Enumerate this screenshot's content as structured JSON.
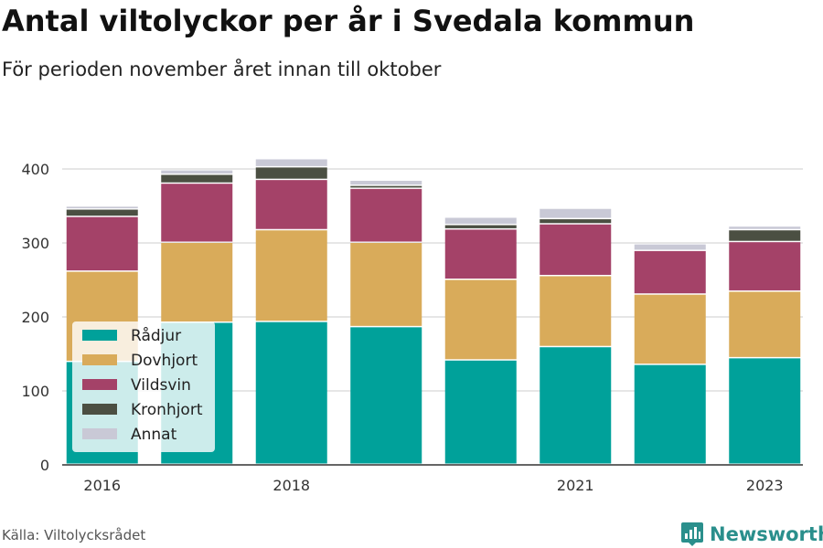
{
  "header": {
    "title": "Antal viltolyckor per år i Svedala kommun",
    "subtitle": "För perioden november året innan till oktober"
  },
  "footer": {
    "source": "Källa: Viltolycksrådet",
    "brand": "Newsworthy",
    "brand_icon": "bar-chart-logo-icon"
  },
  "colors": {
    "Rådjur": "#00a19a",
    "Dovhjort": "#d9ab5a",
    "Vildsvin": "#a44268",
    "Kronhjort": "#4b4f42",
    "Annat": "#c9c9d6",
    "brand": "#2a8f8c",
    "axis": "#333333",
    "grid": "#dddddd"
  },
  "chart_data": {
    "type": "bar",
    "stacked": true,
    "categories": [
      "2016",
      "2017",
      "2018",
      "2019",
      "2020",
      "2021",
      "2022",
      "2023"
    ],
    "x_tick_labels": [
      "2016",
      "",
      "2018",
      "",
      "",
      "2021",
      "",
      "2023"
    ],
    "ylim": [
      0,
      450
    ],
    "yticks": [
      0,
      100,
      200,
      300,
      400
    ],
    "grid": true,
    "legend_position": "bottom-left",
    "series": [
      {
        "name": "Rådjur",
        "values": [
          139,
          192,
          193,
          186,
          141,
          159,
          135,
          144
        ]
      },
      {
        "name": "Dovhjort",
        "values": [
          122,
          108,
          124,
          114,
          109,
          96,
          95,
          90
        ]
      },
      {
        "name": "Vildsvin",
        "values": [
          74,
          80,
          68,
          73,
          68,
          70,
          59,
          67
        ]
      },
      {
        "name": "Kronhjort",
        "values": [
          10,
          12,
          17,
          4,
          6,
          7,
          0,
          16
        ]
      },
      {
        "name": "Annat",
        "values": [
          4,
          6,
          11,
          7,
          10,
          14,
          9,
          5
        ]
      }
    ]
  }
}
